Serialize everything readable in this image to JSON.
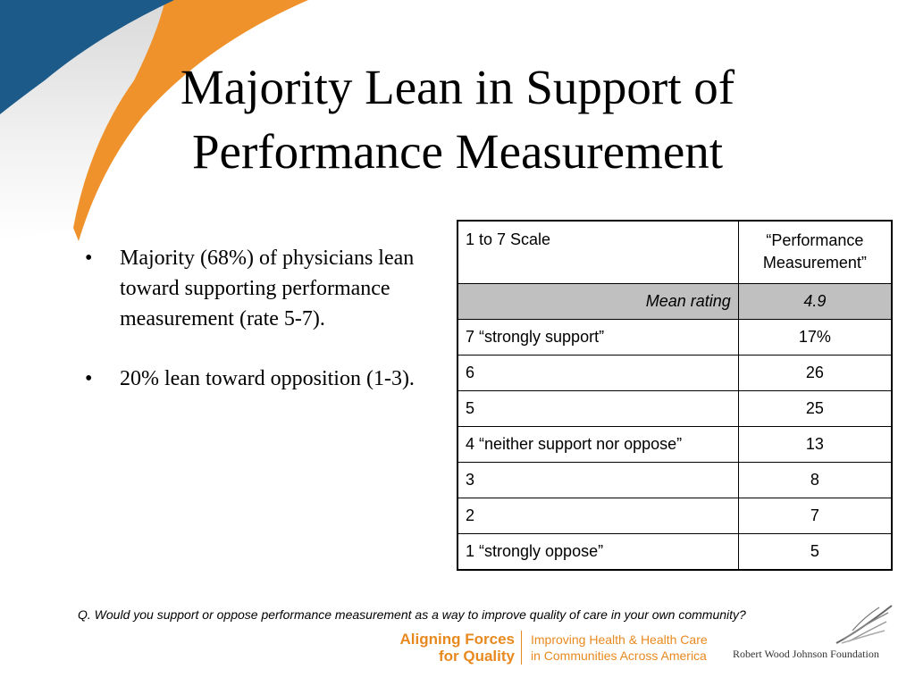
{
  "slide": {
    "title_line1": "Majority Lean in Support of",
    "title_line2": "Performance Measurement",
    "bullets": [
      "Majority (68%) of physicians lean toward supporting performance measurement (rate 5-7).",
      "20% lean toward opposition (1-3)."
    ],
    "bullet_marker": "•",
    "question": "Q. Would you support or oppose performance measurement as a way to improve quality of care in your own community?"
  },
  "table": {
    "header": [
      "1 to 7 Scale",
      "“Performance Measurement”"
    ],
    "mean": {
      "label": "Mean rating",
      "value": "4.9"
    },
    "rows": [
      {
        "label": "7 “strongly support”",
        "value": "17%"
      },
      {
        "label": "6",
        "value": "26"
      },
      {
        "label": "5",
        "value": "25"
      },
      {
        "label": "4 “neither support nor oppose”",
        "value": "13"
      },
      {
        "label": "3",
        "value": "8"
      },
      {
        "label": "2",
        "value": "7"
      },
      {
        "label": "1 “strongly oppose”",
        "value": "5"
      }
    ]
  },
  "footer": {
    "afq_line1": "Aligning Forces",
    "afq_line2": "for Quality",
    "afq_tagline1": "Improving Health & Health Care",
    "afq_tagline2": "in Communities Across America",
    "rwjf": "Robert Wood Johnson Foundation",
    "rwjf_logo_icon": "feather-logo-icon"
  },
  "colors": {
    "blue": "#1c5a8a",
    "orange": "#f0922b",
    "afq_orange": "#e8891f",
    "mean_row_gray": "#c0c0c0"
  }
}
